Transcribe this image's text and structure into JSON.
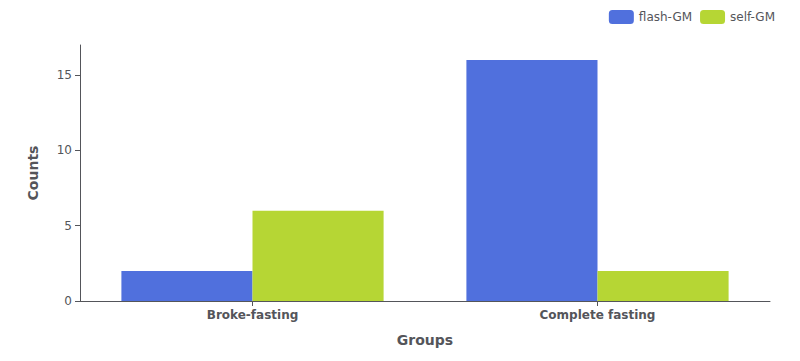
{
  "chart_data": {
    "type": "bar",
    "categories": [
      "Broke-fasting",
      "Complete fasting"
    ],
    "series": [
      {
        "name": "flash-GM",
        "values": [
          2,
          16
        ]
      },
      {
        "name": "self-GM",
        "values": [
          6,
          2
        ]
      }
    ],
    "xlabel": "Groups",
    "ylabel": "Counts",
    "ylim": [
      0,
      17
    ],
    "yticks": [
      0,
      5,
      10,
      15
    ],
    "grid": false,
    "legend": "upper right"
  }
}
